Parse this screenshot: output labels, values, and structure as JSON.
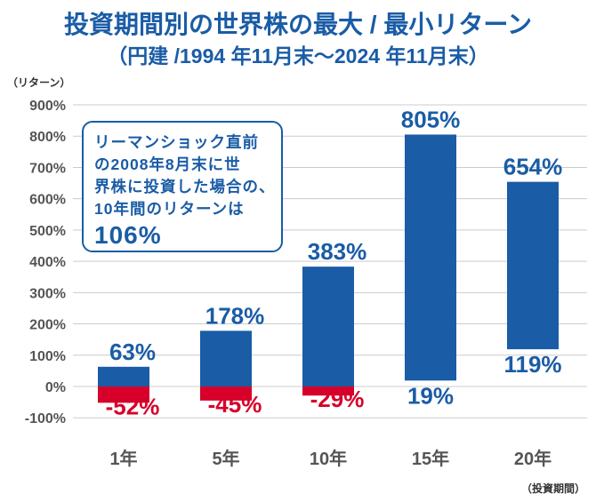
{
  "chart_data": {
    "type": "bar",
    "title": "投資期間別の世界株の最大 / 最小リターン",
    "subtitle": "（円建 /1994 年11月末〜2024 年11月末）",
    "ylabel": "（リターン）",
    "xlabel": "（投資期間）",
    "ylim": [
      -100,
      900
    ],
    "yticks": [
      -100,
      0,
      100,
      200,
      300,
      400,
      500,
      600,
      700,
      800,
      900
    ],
    "ytick_labels": [
      "-100%",
      "0%",
      "100%",
      "200%",
      "300%",
      "400%",
      "500%",
      "600%",
      "700%",
      "800%",
      "900%"
    ],
    "grid": true,
    "categories": [
      "1年",
      "5年",
      "10年",
      "15年",
      "20年"
    ],
    "series": [
      {
        "name": "最大",
        "values": [
          63,
          178,
          383,
          805,
          654
        ],
        "labels": [
          "63%",
          "178%",
          "383%",
          "805%",
          "654%"
        ]
      },
      {
        "name": "最小",
        "values": [
          -52,
          -45,
          -29,
          19,
          119
        ],
        "labels": [
          "-52%",
          "-45%",
          "-29%",
          "19%",
          "119%"
        ]
      }
    ],
    "colors": {
      "positive": "#1a5ca6",
      "negative": "#d7002a",
      "grid": "#cccccc",
      "axis_text": "#555555"
    }
  },
  "annotation": {
    "lines": [
      "リーマンショック直前",
      "の2008年8月末に世",
      "界株に投資した場合の、",
      "10年間のリターンは"
    ],
    "value": "106%"
  }
}
